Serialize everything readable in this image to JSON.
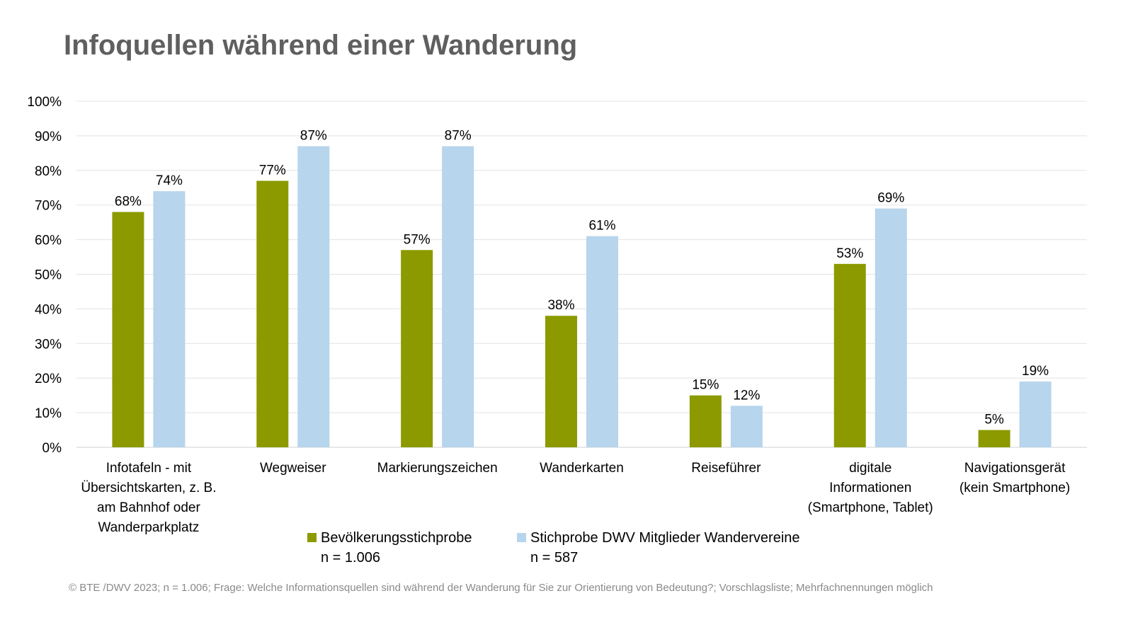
{
  "chart_data": {
    "type": "bar",
    "title": "Infoquellen während einer Wanderung",
    "categories": [
      "Infotafeln - mit\nÜbersichtskarten, z. B.\nam Bahnhof oder\nWanderparkplatz",
      "Wegweiser",
      "Markierungszeichen",
      "Wanderkarten",
      "Reiseführer",
      "digitale\nInformationen\n(Smartphone, Tablet)",
      "Navigationsgerät\n(kein Smartphone)"
    ],
    "series": [
      {
        "name": "Bevölkerungsstichprobe",
        "n_label": "n = 1.006",
        "color": "#8c9a00",
        "values": [
          68,
          77,
          57,
          38,
          15,
          53,
          5
        ]
      },
      {
        "name": "Stichprobe DWV Mitglieder Wandervereine",
        "n_label": "n = 587",
        "color": "#b7d5ec",
        "values": [
          74,
          87,
          87,
          61,
          12,
          69,
          19
        ]
      }
    ],
    "ylim": [
      0,
      100
    ],
    "yticks": [
      "0%",
      "10%",
      "20%",
      "30%",
      "40%",
      "50%",
      "60%",
      "70%",
      "80%",
      "90%",
      "100%"
    ],
    "value_suffix": "%",
    "grid": true,
    "legend_position": "bottom"
  },
  "footer": "© BTE /DWV 2023; n = 1.006; Frage: Welche Informationsquellen sind während der Wanderung für Sie zur Orientierung von Bedeutung?; Vorschlagsliste; Mehrfachnennungen möglich"
}
